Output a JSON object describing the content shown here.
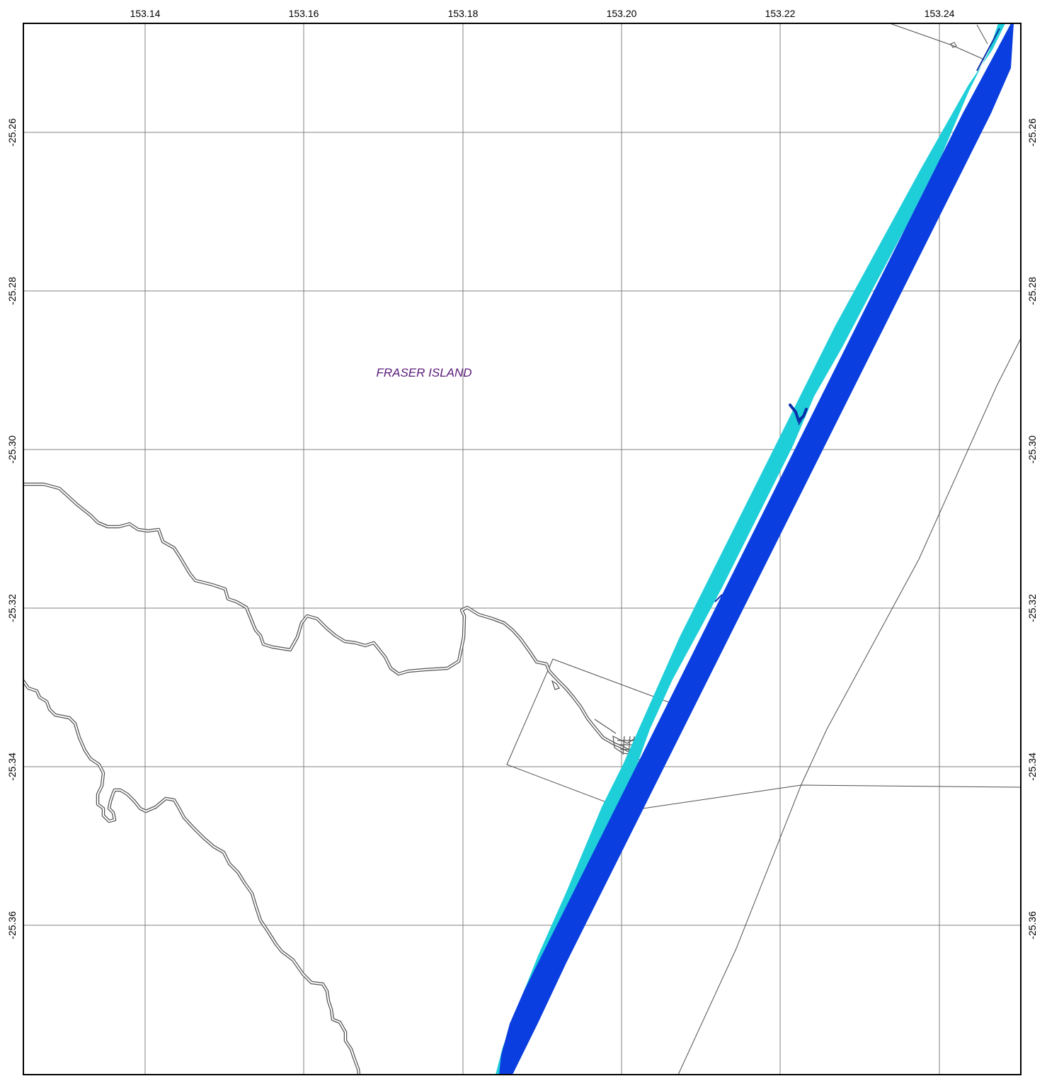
{
  "map": {
    "place_label": "FRASER ISLAND",
    "colors": {
      "frame": "#000000",
      "grid": "#808080",
      "road_outline": "#555555",
      "road_fill": "#ffffff",
      "boundary": "#505050",
      "water_deep": "#0a3ee0",
      "water_dark": "#0a2fa8",
      "water_shallow": "#1ecfd9",
      "place_label": "#5a1a78"
    },
    "longitude_ticks": [
      "153.14",
      "153.16",
      "153.18",
      "153.20",
      "153.22",
      "153.24"
    ],
    "latitude_ticks": [
      "-25.26",
      "-25.28",
      "-25.30",
      "-25.32",
      "-25.34",
      "-25.36"
    ]
  }
}
